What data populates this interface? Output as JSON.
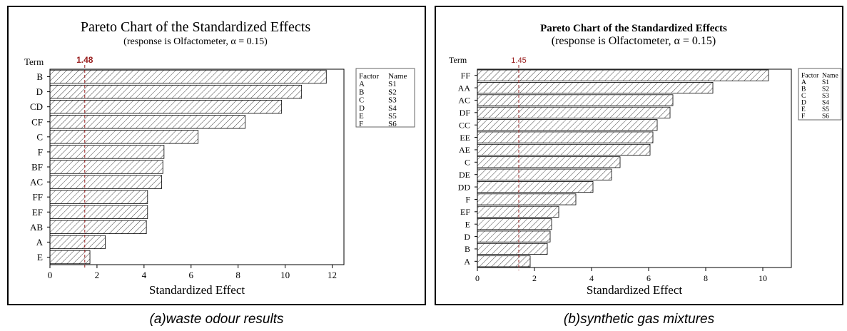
{
  "chart_data": [
    {
      "type": "bar",
      "orientation": "horizontal",
      "title": "Pareto Chart of the Standardized Effects",
      "subtitle": "(response is Olfactometer, α = 0.15)",
      "xlabel": "Standardized Effect",
      "ylabel": "Term",
      "xlim": [
        0,
        12.5
      ],
      "xticks": [
        0,
        2,
        4,
        6,
        8,
        10,
        12
      ],
      "reference_line": {
        "value": 1.48,
        "label": "1.48",
        "color": "#9a2020"
      },
      "categories": [
        "B",
        "D",
        "CD",
        "CF",
        "C",
        "F",
        "BF",
        "AC",
        "FF",
        "EF",
        "AB",
        "A",
        "E"
      ],
      "values": [
        11.75,
        10.7,
        9.85,
        8.3,
        6.3,
        4.85,
        4.8,
        4.75,
        4.15,
        4.15,
        4.1,
        2.35,
        1.7
      ],
      "legend": {
        "headers": [
          "Factor",
          "Name"
        ],
        "rows": [
          [
            "A",
            "S1"
          ],
          [
            "B",
            "S2"
          ],
          [
            "C",
            "S3"
          ],
          [
            "D",
            "S4"
          ],
          [
            "E",
            "S5"
          ],
          [
            "F",
            "S6"
          ]
        ]
      },
      "caption": "(a)waste odour results"
    },
    {
      "type": "bar",
      "orientation": "horizontal",
      "title": "Pareto Chart of the Standardized Effects",
      "subtitle": "(response is Olfactometer, α = 0.15)",
      "xlabel": "Standardized Effect",
      "ylabel": "Term",
      "xlim": [
        0,
        11
      ],
      "xticks": [
        0,
        2,
        4,
        6,
        8,
        10
      ],
      "reference_line": {
        "value": 1.45,
        "label": "1.45",
        "color": "#9a2020"
      },
      "categories": [
        "FF",
        "AA",
        "AC",
        "DF",
        "CC",
        "EE",
        "AE",
        "C",
        "DE",
        "DD",
        "F",
        "EF",
        "E",
        "D",
        "B",
        "A"
      ],
      "values": [
        10.2,
        8.25,
        6.85,
        6.75,
        6.3,
        6.15,
        6.05,
        5.0,
        4.7,
        4.05,
        3.45,
        2.85,
        2.6,
        2.55,
        2.45,
        1.85
      ],
      "legend": {
        "headers": [
          "Factor",
          "Name"
        ],
        "rows": [
          [
            "A",
            "S1"
          ],
          [
            "B",
            "S2"
          ],
          [
            "C",
            "S3"
          ],
          [
            "D",
            "S4"
          ],
          [
            "E",
            "S5"
          ],
          [
            "F",
            "S6"
          ]
        ]
      },
      "caption": "(b)synthetic gas mixtures"
    }
  ]
}
